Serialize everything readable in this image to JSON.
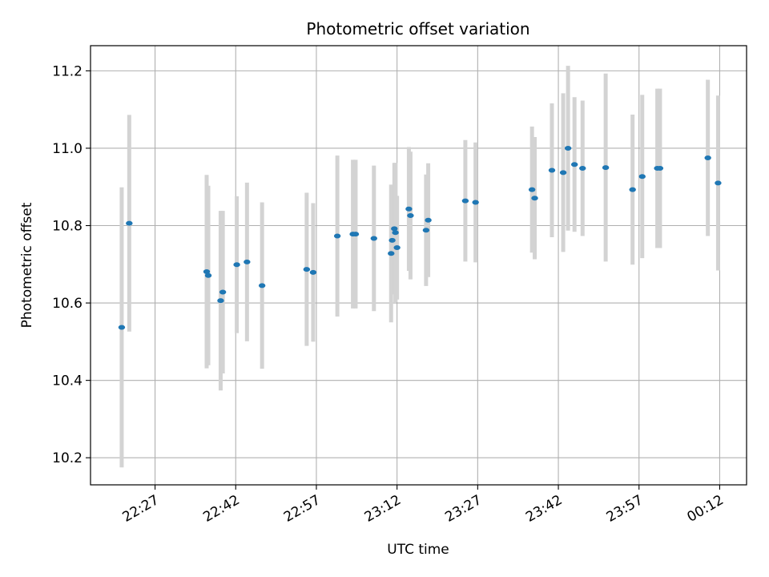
{
  "chart_data": {
    "type": "scatter",
    "title": "Photometric offset variation",
    "xlabel": "UTC time",
    "ylabel": "Photometric offset",
    "x_tick_labels": [
      "22:27",
      "22:42",
      "22:57",
      "23:12",
      "23:27",
      "23:42",
      "23:57",
      "00:12"
    ],
    "x_tick_minutes": [
      0,
      15,
      30,
      45,
      60,
      75,
      90,
      105
    ],
    "xlim_minutes": [
      -12,
      110
    ],
    "y_ticks": [
      10.2,
      10.4,
      10.6,
      10.8,
      11.0,
      11.2
    ],
    "y_tick_labels": [
      "10.2",
      "10.4",
      "10.6",
      "10.8",
      "11.0",
      "11.2"
    ],
    "ylim": [
      10.13,
      11.265
    ],
    "grid": true,
    "point_color": "#1f77b4",
    "errorbar_color": "#d3d3d3",
    "series": [
      {
        "points": [
          {
            "t": -6.2,
            "y": 10.537,
            "err": 0.362
          },
          {
            "t": -4.8,
            "y": 10.806,
            "err": 0.28
          },
          {
            "t": 9.6,
            "y": 10.681,
            "err": 0.25
          },
          {
            "t": 9.9,
            "y": 10.671,
            "err": 0.232
          },
          {
            "t": 12.2,
            "y": 10.606,
            "err": 0.232
          },
          {
            "t": 12.6,
            "y": 10.628,
            "err": 0.21
          },
          {
            "t": 15.2,
            "y": 10.699,
            "err": 0.177
          },
          {
            "t": 17.1,
            "y": 10.706,
            "err": 0.205
          },
          {
            "t": 19.9,
            "y": 10.645,
            "err": 0.215
          },
          {
            "t": 28.2,
            "y": 10.687,
            "err": 0.198
          },
          {
            "t": 29.4,
            "y": 10.679,
            "err": 0.179
          },
          {
            "t": 33.9,
            "y": 10.773,
            "err": 0.208
          },
          {
            "t": 36.8,
            "y": 10.778,
            "err": 0.192
          },
          {
            "t": 37.3,
            "y": 10.778,
            "err": 0.192
          },
          {
            "t": 40.7,
            "y": 10.767,
            "err": 0.188
          },
          {
            "t": 43.9,
            "y": 10.728,
            "err": 0.178
          },
          {
            "t": 44.1,
            "y": 10.762,
            "err": 0.138
          },
          {
            "t": 44.5,
            "y": 10.792,
            "err": 0.17
          },
          {
            "t": 44.7,
            "y": 10.782,
            "err": 0.18
          },
          {
            "t": 45.0,
            "y": 10.743,
            "err": 0.134
          },
          {
            "t": 47.2,
            "y": 10.843,
            "err": 0.16
          },
          {
            "t": 47.5,
            "y": 10.826,
            "err": 0.165
          },
          {
            "t": 50.4,
            "y": 10.788,
            "err": 0.144
          },
          {
            "t": 50.8,
            "y": 10.814,
            "err": 0.147
          },
          {
            "t": 57.7,
            "y": 10.864,
            "err": 0.157
          },
          {
            "t": 59.6,
            "y": 10.86,
            "err": 0.155
          },
          {
            "t": 70.1,
            "y": 10.893,
            "err": 0.163
          },
          {
            "t": 70.6,
            "y": 10.871,
            "err": 0.158
          },
          {
            "t": 73.8,
            "y": 10.943,
            "err": 0.173
          },
          {
            "t": 75.9,
            "y": 10.937,
            "err": 0.205
          },
          {
            "t": 76.8,
            "y": 11.0,
            "err": 0.213
          },
          {
            "t": 78.0,
            "y": 10.958,
            "err": 0.174
          },
          {
            "t": 79.5,
            "y": 10.948,
            "err": 0.175
          },
          {
            "t": 83.8,
            "y": 10.95,
            "err": 0.243
          },
          {
            "t": 88.8,
            "y": 10.893,
            "err": 0.194
          },
          {
            "t": 90.6,
            "y": 10.927,
            "err": 0.211
          },
          {
            "t": 93.4,
            "y": 10.948,
            "err": 0.206
          },
          {
            "t": 93.9,
            "y": 10.948,
            "err": 0.206
          },
          {
            "t": 102.8,
            "y": 10.975,
            "err": 0.202
          },
          {
            "t": 104.7,
            "y": 10.91,
            "err": 0.226
          }
        ]
      }
    ]
  }
}
